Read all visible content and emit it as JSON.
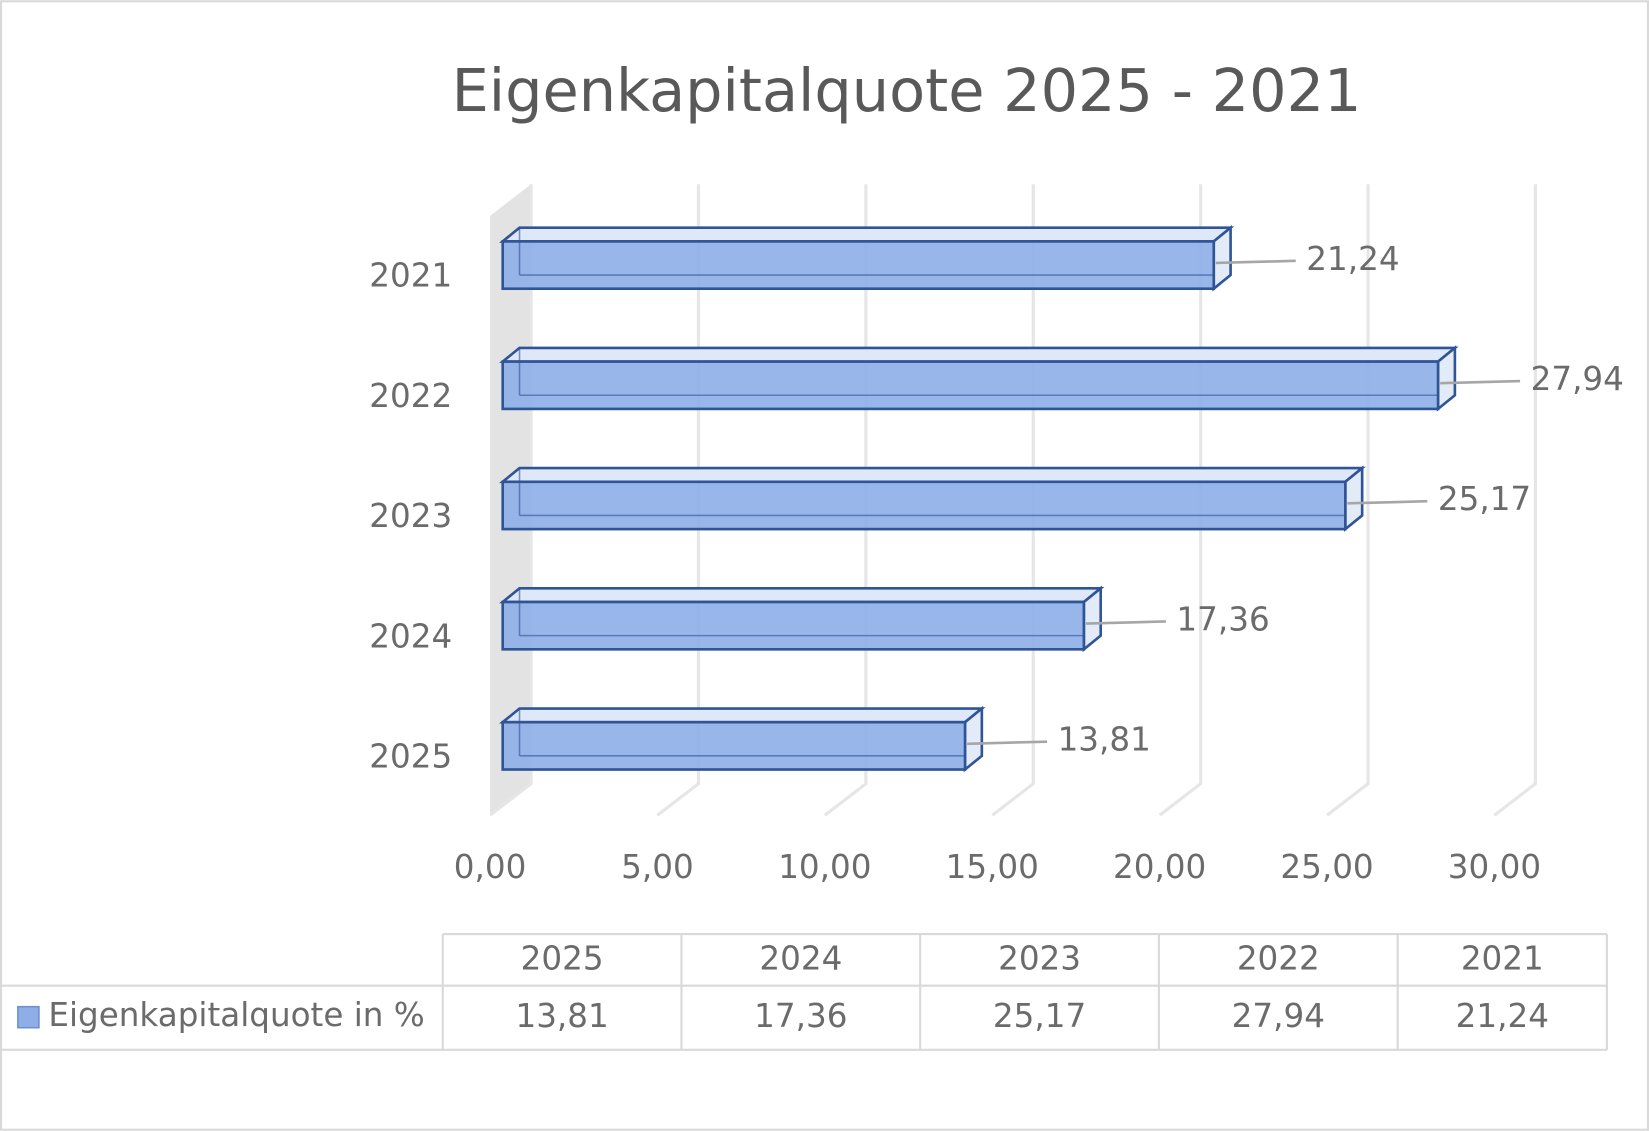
{
  "chart_data": {
    "type": "bar",
    "orientation": "horizontal",
    "title": "Eigenkapitalquote 2025 - 2021",
    "categories": [
      "2025",
      "2024",
      "2023",
      "2022",
      "2021"
    ],
    "series": [
      {
        "name": "Eigenkapitalquote in %",
        "color": "#8eaee8",
        "values": [
          13.81,
          17.36,
          25.17,
          27.94,
          21.24
        ],
        "value_labels": [
          "13,81",
          "17,36",
          "25,17",
          "27,94",
          "21,24"
        ]
      }
    ],
    "xlim": [
      0,
      30
    ],
    "xticks": [
      {
        "value": 0,
        "label": "0,00"
      },
      {
        "value": 5,
        "label": "5,00"
      },
      {
        "value": 10,
        "label": "10,00"
      },
      {
        "value": 15,
        "label": "15,00"
      },
      {
        "value": 20,
        "label": "20,00"
      },
      {
        "value": 25,
        "label": "25,00"
      },
      {
        "value": 30,
        "label": "30,00"
      }
    ],
    "grid": true,
    "data_table": true
  }
}
